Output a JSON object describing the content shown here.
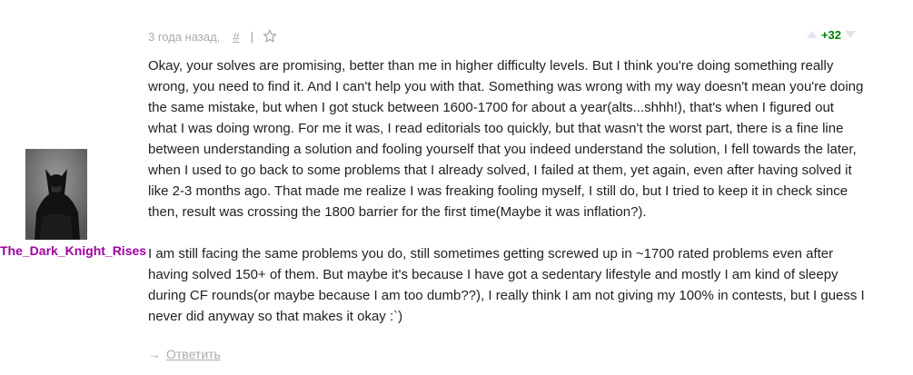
{
  "previous_comment": {
    "author_fragment": "· · ·"
  },
  "comment": {
    "author": "The_Dark_Knight_Rises",
    "author_color": "#a000a0",
    "avatar_icon": "batman-avatar",
    "time": "3 года назад,",
    "permalink": "#",
    "separator": "|",
    "rating": "+32",
    "rating_color": "#008000",
    "paragraphs": [
      "Okay, your solves are promising, better than me in higher difficulty levels. But I think you're doing something really wrong, you need to find it. And I can't help you with that. Something was wrong with my way doesn't mean you're doing the same mistake, but when I got stuck between 1600-1700 for about a year(alts...shhh!), that's when I figured out what I was doing wrong. For me it was, I read editorials too quickly, but that wasn't the worst part, there is a fine line between understanding a solution and fooling yourself that you indeed understand the solution, I fell towards the later, when I used to go back to some problems that I already solved, I failed at them, yet again, even after having solved it like 2-3 months ago. That made me realize I was freaking fooling myself, I still do, but I tried to keep it in check since then, result was crossing the 1800 barrier for the first time(Maybe it was inflation?).",
      "I am still facing the same problems you do, still sometimes getting screwed up in ~1700 rated problems even after having solved 150+ of them. But maybe it's because I have got a sedentary lifestyle and mostly I am kind of sleepy during CF rounds(or maybe because I am too dumb??), I really think I am not giving my 100% in contests, but I guess I never did anyway so that makes it okay :`)"
    ],
    "reply_arrow": "→",
    "reply_label": "Ответить"
  }
}
